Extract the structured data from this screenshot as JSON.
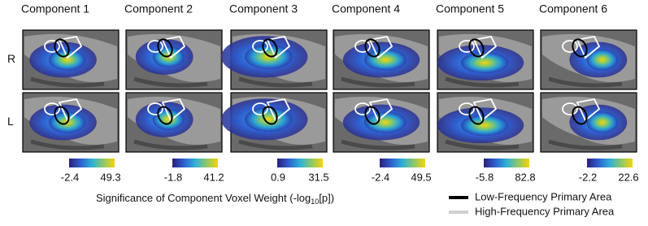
{
  "title_row": [
    "Component 1",
    "Component 2",
    "Component 3",
    "Component 4",
    "Component 5",
    "Component 6"
  ],
  "rows": [
    "R",
    "L"
  ],
  "colorbars": [
    {
      "min": -2.4,
      "max": 49.3
    },
    {
      "min": -1.8,
      "max": 41.2
    },
    {
      "min": 0.9,
      "max": 31.5
    },
    {
      "min": -2.4,
      "max": 49.5
    },
    {
      "min": -5.8,
      "max": 82.8
    },
    {
      "min": -2.2,
      "max": 22.6
    }
  ],
  "caption": {
    "text": "Significance of Component Voxel Weight (-log",
    "subscript": "10",
    "suffix": "[p])"
  },
  "legend": [
    {
      "label": "Low-Frequency Primary Area",
      "color": "#000000"
    },
    {
      "label": "High-Frequency Primary Area",
      "color": "#d0d0d0"
    }
  ]
}
